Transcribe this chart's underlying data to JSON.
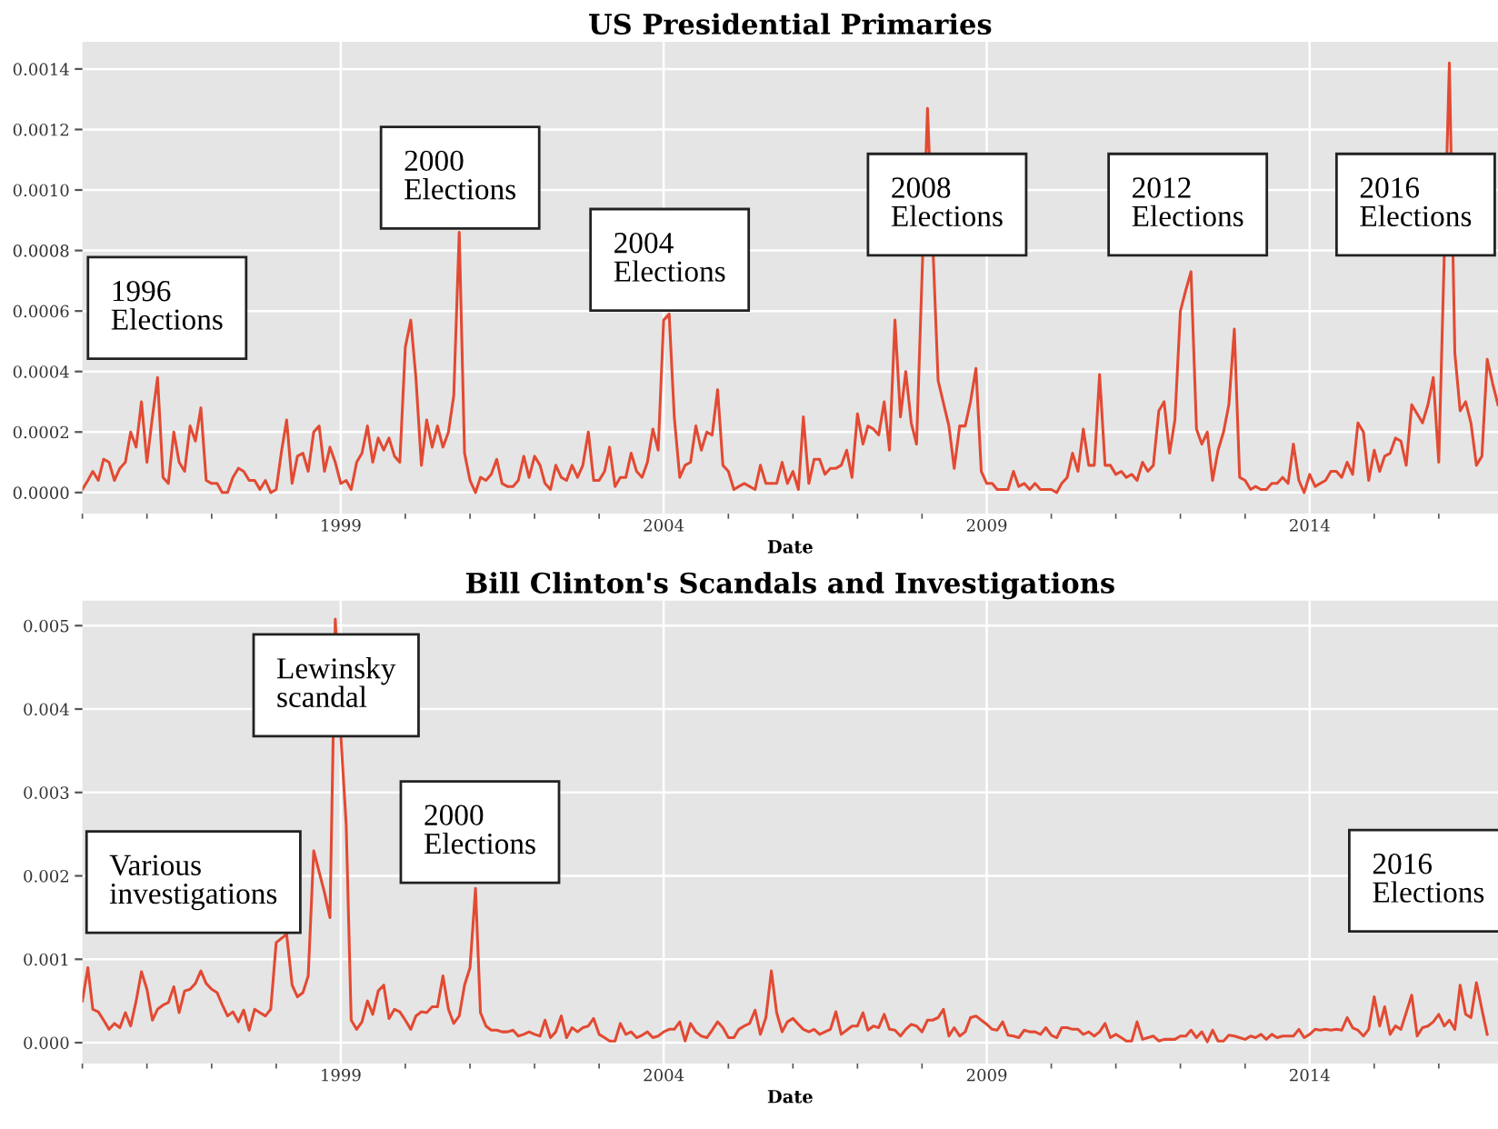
{
  "chart_data": [
    {
      "type": "line",
      "title": "US Presidential Primaries",
      "xlabel": "Date",
      "x": [
        "1995-01",
        "1995-02",
        "1995-03",
        "1995-04",
        "1995-05",
        "1995-06",
        "1995-07",
        "1995-08",
        "1995-09",
        "1995-10",
        "1995-11",
        "1995-12",
        "1996-01",
        "1996-02",
        "1996-03",
        "1996-04",
        "1996-05",
        "1996-06",
        "1996-07",
        "1996-08",
        "1996-09",
        "1996-10",
        "1996-11",
        "1996-12",
        "1997-01",
        "1997-02",
        "1997-03",
        "1997-04",
        "1997-05",
        "1997-06",
        "1997-07",
        "1997-08",
        "1997-09",
        "1997-10",
        "1997-11",
        "1997-12",
        "1998-01",
        "1998-02",
        "1998-03",
        "1998-04",
        "1998-05",
        "1998-06",
        "1998-07",
        "1998-08",
        "1998-09",
        "1998-10",
        "1998-11",
        "1998-12",
        "1999-01",
        "1999-02",
        "1999-03",
        "1999-04",
        "1999-05",
        "1999-06",
        "1999-07",
        "1999-08",
        "1999-09",
        "1999-10",
        "1999-11",
        "1999-12",
        "2000-01",
        "2000-02",
        "2000-03",
        "2000-04",
        "2000-05",
        "2000-06",
        "2000-07",
        "2000-08",
        "2000-09",
        "2000-10",
        "2000-11",
        "2000-12",
        "2001-01",
        "2001-02",
        "2001-03",
        "2001-04",
        "2001-05",
        "2001-06",
        "2001-07",
        "2001-08",
        "2001-09",
        "2001-10",
        "2001-11",
        "2001-12",
        "2002-01",
        "2002-02",
        "2002-03",
        "2002-04",
        "2002-05",
        "2002-06",
        "2002-07",
        "2002-08",
        "2002-09",
        "2002-10",
        "2002-11",
        "2002-12",
        "2003-01",
        "2003-02",
        "2003-03",
        "2003-04",
        "2003-05",
        "2003-06",
        "2003-07",
        "2003-08",
        "2003-09",
        "2003-10",
        "2003-11",
        "2003-12",
        "2004-01",
        "2004-02",
        "2004-03",
        "2004-04",
        "2004-05",
        "2004-06",
        "2004-07",
        "2004-08",
        "2004-09",
        "2004-10",
        "2004-11",
        "2004-12",
        "2005-01",
        "2005-02",
        "2005-03",
        "2005-04",
        "2005-05",
        "2005-06",
        "2005-07",
        "2005-08",
        "2005-09",
        "2005-10",
        "2005-11",
        "2005-12",
        "2006-01",
        "2006-02",
        "2006-03",
        "2006-04",
        "2006-05",
        "2006-06",
        "2006-07",
        "2006-08",
        "2006-09",
        "2006-10",
        "2006-11",
        "2006-12",
        "2007-01",
        "2007-02",
        "2007-03",
        "2007-04",
        "2007-05",
        "2007-06",
        "2007-07",
        "2007-08",
        "2007-09",
        "2007-10",
        "2007-11",
        "2007-12",
        "2008-01",
        "2008-02",
        "2008-03",
        "2008-04",
        "2008-05",
        "2008-06",
        "2008-07",
        "2008-08",
        "2008-09",
        "2008-10",
        "2008-11",
        "2008-12",
        "2009-01",
        "2009-02",
        "2009-03",
        "2009-04",
        "2009-05",
        "2009-06",
        "2009-07",
        "2009-08",
        "2009-09",
        "2009-10",
        "2009-11",
        "2009-12",
        "2010-01",
        "2010-02",
        "2010-03",
        "2010-04",
        "2010-05",
        "2010-06",
        "2010-07",
        "2010-08",
        "2010-09",
        "2010-10",
        "2010-11",
        "2010-12",
        "2011-01",
        "2011-02",
        "2011-03",
        "2011-04",
        "2011-05",
        "2011-06",
        "2011-07",
        "2011-08",
        "2011-09",
        "2011-10",
        "2011-11",
        "2011-12",
        "2012-01",
        "2012-02",
        "2012-03",
        "2012-04",
        "2012-05",
        "2012-06",
        "2012-07",
        "2012-08",
        "2012-09",
        "2012-10",
        "2012-11",
        "2012-12",
        "2013-01",
        "2013-02",
        "2013-03",
        "2013-04",
        "2013-05",
        "2013-06",
        "2013-07",
        "2013-08",
        "2013-09",
        "2013-10",
        "2013-11",
        "2013-12",
        "2014-01",
        "2014-02",
        "2014-03",
        "2014-04",
        "2014-05",
        "2014-06",
        "2014-07",
        "2014-08",
        "2014-09",
        "2014-10",
        "2014-11",
        "2014-12",
        "2015-01",
        "2015-02",
        "2015-03",
        "2015-04",
        "2015-05",
        "2015-06",
        "2015-07",
        "2015-08",
        "2015-09",
        "2015-10",
        "2015-11",
        "2015-12",
        "2016-01",
        "2016-02",
        "2016-03",
        "2016-04",
        "2016-05",
        "2016-06",
        "2016-07",
        "2016-08",
        "2016-09",
        "2016-10",
        "2016-11",
        "2016-12"
      ],
      "series": [
        {
          "color": "#e24a33",
          "values": [
            1e-05,
            4e-05,
            7e-05,
            4e-05,
            0.00011,
            0.0001,
            4e-05,
            8e-05,
            0.0001,
            0.0002,
            0.00015,
            0.0003,
            0.0001,
            0.00025,
            0.00038,
            5e-05,
            3e-05,
            0.0002,
            0.0001,
            7e-05,
            0.00022,
            0.00017,
            0.00028,
            4e-05,
            3e-05,
            3e-05,
            0,
            0,
            5e-05,
            8e-05,
            7e-05,
            4e-05,
            4e-05,
            1e-05,
            4e-05,
            0,
            1e-05,
            0.00014,
            0.00024,
            3e-05,
            0.00012,
            0.00013,
            7e-05,
            0.0002,
            0.00022,
            7e-05,
            0.00015,
            0.0001,
            3e-05,
            4e-05,
            1e-05,
            0.0001,
            0.00013,
            0.00022,
            0.0001,
            0.00018,
            0.00014,
            0.00018,
            0.00012,
            0.0001,
            0.00048,
            0.00057,
            0.00038,
            9e-05,
            0.00024,
            0.00015,
            0.00022,
            0.00015,
            0.0002,
            0.00032,
            0.00086,
            0.00013,
            4e-05,
            0,
            5e-05,
            4e-05,
            6e-05,
            0.00011,
            3e-05,
            2e-05,
            2e-05,
            4e-05,
            0.00012,
            5e-05,
            0.00012,
            9e-05,
            3e-05,
            1e-05,
            9e-05,
            5e-05,
            4e-05,
            9e-05,
            5e-05,
            9e-05,
            0.0002,
            4e-05,
            4e-05,
            7e-05,
            0.00015,
            2e-05,
            5e-05,
            5e-05,
            0.00013,
            7e-05,
            5e-05,
            0.0001,
            0.00021,
            0.00014,
            0.00057,
            0.00059,
            0.00025,
            5e-05,
            9e-05,
            0.0001,
            0.00022,
            0.00014,
            0.0002,
            0.00019,
            0.00034,
            9e-05,
            7e-05,
            1e-05,
            2e-05,
            3e-05,
            2e-05,
            1e-05,
            9e-05,
            3e-05,
            3e-05,
            3e-05,
            0.0001,
            3e-05,
            7e-05,
            1e-05,
            0.00025,
            3e-05,
            0.00011,
            0.00011,
            6e-05,
            8e-05,
            8e-05,
            9e-05,
            0.00014,
            5e-05,
            0.00026,
            0.00016,
            0.00022,
            0.00021,
            0.00019,
            0.0003,
            0.00014,
            0.00057,
            0.00025,
            0.0004,
            0.00023,
            0.00016,
            null,
            0.00127,
            null,
            0.00037,
            null,
            0.00022,
            8e-05,
            0.00022,
            0.00022,
            0.0003,
            0.00041,
            7e-05,
            3e-05,
            3e-05,
            1e-05,
            1e-05,
            1e-05,
            7e-05,
            2e-05,
            3e-05,
            1e-05,
            3e-05,
            1e-05,
            1e-05,
            1e-05,
            0,
            3e-05,
            5e-05,
            0.00013,
            7e-05,
            0.00021,
            9e-05,
            9e-05,
            0.00039,
            9e-05,
            9e-05,
            6e-05,
            7e-05,
            5e-05,
            6e-05,
            4e-05,
            0.0001,
            7e-05,
            9e-05,
            0.00027,
            0.0003,
            0.00013,
            0.00024,
            0.0006,
            0.00067,
            0.00073,
            0.00021,
            0.00016,
            0.0002,
            4e-05,
            0.00014,
            0.0002,
            0.00029,
            0.00054,
            5e-05,
            4e-05,
            1e-05,
            2e-05,
            1e-05,
            1e-05,
            3e-05,
            3e-05,
            5e-05,
            3e-05,
            0.00016,
            4e-05,
            0,
            6e-05,
            2e-05,
            3e-05,
            4e-05,
            7e-05,
            7e-05,
            5e-05,
            0.0001,
            6e-05,
            0.00023,
            0.0002,
            4e-05,
            0.00014,
            7e-05,
            0.00012,
            0.00013,
            0.00018,
            0.00017,
            9e-05,
            0.00029,
            0.00026,
            0.00023,
            0.00029,
            0.00038,
            0.0001,
            null,
            0.00142,
            0.00046,
            0.00027,
            0.0003,
            0.00023,
            9e-05,
            0.00012,
            0.00044,
            0.00036,
            0.00029
          ]
        }
      ],
      "xlim": [
        "1995-01",
        "2016-12"
      ],
      "xticks": [
        {
          "value": "1995",
          "label": null
        },
        {
          "value": "1996",
          "label": null
        },
        {
          "value": "1997",
          "label": null
        },
        {
          "value": "1998",
          "label": null
        },
        {
          "value": "1999",
          "label": "1999"
        },
        {
          "value": "2000",
          "label": null
        },
        {
          "value": "2001",
          "label": null
        },
        {
          "value": "2002",
          "label": null
        },
        {
          "value": "2003",
          "label": null
        },
        {
          "value": "2004",
          "label": "2004"
        },
        {
          "value": "2005",
          "label": null
        },
        {
          "value": "2006",
          "label": null
        },
        {
          "value": "2007",
          "label": null
        },
        {
          "value": "2008",
          "label": null
        },
        {
          "value": "2009",
          "label": "2009"
        },
        {
          "value": "2010",
          "label": null
        },
        {
          "value": "2011",
          "label": null
        },
        {
          "value": "2012",
          "label": null
        },
        {
          "value": "2013",
          "label": null
        },
        {
          "value": "2014",
          "label": "2014"
        },
        {
          "value": "2015",
          "label": null
        },
        {
          "value": "2016",
          "label": null
        }
      ],
      "ylim": [
        -7e-05,
        0.00149
      ],
      "yticks": [
        {
          "value": 0,
          "label": "0.0000"
        },
        {
          "value": 0.0002,
          "label": "0.0002"
        },
        {
          "value": 0.0004,
          "label": "0.0004"
        },
        {
          "value": 0.0006,
          "label": "0.0006"
        },
        {
          "value": 0.0008,
          "label": "0.0008"
        },
        {
          "value": 0.001,
          "label": "0.0010"
        },
        {
          "value": 0.0012,
          "label": "0.0012"
        },
        {
          "value": 0.0014,
          "label": "0.0014"
        }
      ],
      "grid": true,
      "line_style": "solid",
      "marker": "none",
      "annotations": [
        "1996\nElections",
        "2000\nElections",
        "2004\nElections",
        "2008\nElections",
        "2012\nElections",
        "2016\nElections"
      ]
    },
    {
      "type": "line",
      "title": "Bill Clinton's Scandals and Investigations",
      "xlabel": "Date",
      "x": [
        "1995-01",
        "1995-02",
        "1995-03",
        "1995-04",
        "1995-05",
        "1995-06",
        "1995-07",
        "1995-08",
        "1995-09",
        "1995-10",
        "1995-11",
        "1995-12",
        "1996-01",
        "1996-02",
        "1996-03",
        "1996-04",
        "1996-05",
        "1996-06",
        "1996-07",
        "1996-08",
        "1996-09",
        "1996-10",
        "1996-11",
        "1996-12",
        "1997-01",
        "1997-02",
        "1997-03",
        "1997-04",
        "1997-05",
        "1997-06",
        "1997-07",
        "1997-08",
        "1997-09",
        "1997-10",
        "1997-11",
        "1997-12",
        "1998-01",
        "1998-02",
        "1998-03",
        "1998-04",
        "1998-05",
        "1998-06",
        "1998-07",
        "1998-08",
        "1998-09",
        "1998-10",
        "1998-11",
        "1998-12",
        "1999-01",
        "1999-02",
        "1999-03",
        "1999-04",
        "1999-05",
        "1999-06",
        "1999-07",
        "1999-08",
        "1999-09",
        "1999-10",
        "1999-11",
        "1999-12",
        "2000-01",
        "2000-02",
        "2000-03",
        "2000-04",
        "2000-05",
        "2000-06",
        "2000-07",
        "2000-08",
        "2000-09",
        "2000-10",
        "2000-11",
        "2000-12",
        "2001-01",
        "2001-02",
        "2001-03",
        "2001-04",
        "2001-05",
        "2001-06",
        "2001-07",
        "2001-08",
        "2001-09",
        "2001-10",
        "2001-11",
        "2001-12",
        "2002-01",
        "2002-02",
        "2002-03",
        "2002-04",
        "2002-05",
        "2002-06",
        "2002-07",
        "2002-08",
        "2002-09",
        "2002-10",
        "2002-11",
        "2002-12",
        "2003-01",
        "2003-02",
        "2003-03",
        "2003-04",
        "2003-05",
        "2003-06",
        "2003-07",
        "2003-08",
        "2003-09",
        "2003-10",
        "2003-11",
        "2003-12",
        "2004-01",
        "2004-02",
        "2004-03",
        "2004-04",
        "2004-05",
        "2004-06",
        "2004-07",
        "2004-08",
        "2004-09",
        "2004-10",
        "2004-11",
        "2004-12",
        "2005-01",
        "2005-02",
        "2005-03",
        "2005-04",
        "2005-05",
        "2005-06",
        "2005-07",
        "2005-08",
        "2005-09",
        "2005-10",
        "2005-11",
        "2005-12",
        "2006-01",
        "2006-02",
        "2006-03",
        "2006-04",
        "2006-05",
        "2006-06",
        "2006-07",
        "2006-08",
        "2006-09",
        "2006-10",
        "2006-11",
        "2006-12",
        "2007-01",
        "2007-02",
        "2007-03",
        "2007-04",
        "2007-05",
        "2007-06",
        "2007-07",
        "2007-08",
        "2007-09",
        "2007-10",
        "2007-11",
        "2007-12",
        "2008-01",
        "2008-02",
        "2008-03",
        "2008-04",
        "2008-05",
        "2008-06",
        "2008-07",
        "2008-08",
        "2008-09",
        "2008-10",
        "2008-11",
        "2008-12",
        "2009-01",
        "2009-02",
        "2009-03",
        "2009-04",
        "2009-05",
        "2009-06",
        "2009-07",
        "2009-08",
        "2009-09",
        "2009-10",
        "2009-11",
        "2009-12",
        "2010-01",
        "2010-02",
        "2010-03",
        "2010-04",
        "2010-05",
        "2010-06",
        "2010-07",
        "2010-08",
        "2010-09",
        "2010-10",
        "2010-11",
        "2010-12",
        "2011-01",
        "2011-02",
        "2011-03",
        "2011-04",
        "2011-05",
        "2011-06",
        "2011-07",
        "2011-08",
        "2011-09",
        "2011-10",
        "2011-11",
        "2011-12",
        "2012-01",
        "2012-02",
        "2012-03",
        "2012-04",
        "2012-05",
        "2012-06",
        "2012-07",
        "2012-08",
        "2012-09",
        "2012-10",
        "2012-11",
        "2012-12",
        "2013-01",
        "2013-02",
        "2013-03",
        "2013-04",
        "2013-05",
        "2013-06",
        "2013-07",
        "2013-08",
        "2013-09",
        "2013-10",
        "2013-11",
        "2013-12",
        "2014-01",
        "2014-02",
        "2014-03",
        "2014-04",
        "2014-05",
        "2014-06",
        "2014-07",
        "2014-08",
        "2014-09",
        "2014-10",
        "2014-11",
        "2014-12",
        "2015-01",
        "2015-02",
        "2015-03",
        "2015-04",
        "2015-05",
        "2015-06",
        "2015-07",
        "2015-08",
        "2015-09",
        "2015-10",
        "2015-11",
        "2015-12",
        "2016-01",
        "2016-02",
        "2016-03",
        "2016-04",
        "2016-05",
        "2016-06",
        "2016-07",
        "2016-08",
        "2016-09",
        "2016-10"
      ],
      "series": [
        {
          "color": "#e24a33",
          "values": [
            0.0005,
            0.0009,
            0.0004,
            0.00037,
            0.00027,
            0.00016,
            0.00023,
            0.00018,
            0.00036,
            0.0002,
            0.0005,
            0.00085,
            0.00064,
            0.00027,
            0.0004,
            0.00045,
            0.00048,
            0.00067,
            0.00036,
            0.00062,
            0.00064,
            0.00071,
            0.00086,
            0.00071,
            0.00064,
            0.0006,
            0.00046,
            0.00032,
            0.00037,
            0.00025,
            0.00039,
            0.00015,
            0.0004,
            0.00036,
            0.00032,
            0.0004,
            0.0012,
            null,
            0.0013,
            0.00069,
            0.00055,
            0.0006,
            0.0008,
            0.0023,
            null,
            0.0018,
            0.0015,
            0.00508,
            0.0037,
            0.0026,
            0.00027,
            0.00016,
            0.00025,
            0.0005,
            0.00034,
            0.00062,
            0.00069,
            0.00029,
            0.0004,
            0.00037,
            0.00027,
            0.00016,
            0.00032,
            0.00037,
            0.00036,
            0.00043,
            0.00043,
            0.0008,
            0.0004,
            0.00023,
            0.00032,
            0.00069,
            0.0009,
            0.00185,
            0.00036,
            0.0002,
            0.00015,
            0.00015,
            0.00013,
            0.00013,
            0.00015,
            8e-05,
            0.0001,
            0.00013,
            0.0001,
            8e-05,
            0.00027,
            6e-05,
            0.00013,
            0.00032,
            6e-05,
            0.00018,
            0.00013,
            0.00018,
            0.0002,
            0.00029,
            0.0001,
            6e-05,
            2e-05,
            2e-05,
            0.00023,
            0.0001,
            0.00013,
            6e-05,
            9e-05,
            0.00013,
            6e-05,
            8e-05,
            0.00013,
            0.00016,
            0.00016,
            0.00025,
            2e-05,
            0.00023,
            0.00013,
            8e-05,
            6e-05,
            0.00015,
            0.00025,
            0.00018,
            6e-05,
            6e-05,
            0.00016,
            0.0002,
            0.00023,
            0.00039,
            0.0001,
            0.0003,
            0.00086,
            0.00036,
            0.00013,
            0.00025,
            0.00029,
            0.00022,
            0.00016,
            0.00013,
            0.00016,
            0.0001,
            0.00013,
            0.00016,
            0.00037,
            0.0001,
            0.00015,
            0.0002,
            0.0002,
            0.00036,
            0.00015,
            0.0002,
            0.00018,
            0.00034,
            0.00016,
            0.00015,
            8e-05,
            0.00016,
            0.00022,
            0.0002,
            0.00013,
            0.00027,
            0.00027,
            0.0003,
            0.0004,
            8e-05,
            0.00018,
            8e-05,
            0.00013,
            0.0003,
            0.00032,
            0.00027,
            0.00022,
            0.00016,
            0.00015,
            0.00025,
            9e-05,
            8e-05,
            6e-05,
            0.00015,
            0.00013,
            0.00013,
            0.0001,
            0.00018,
            9e-05,
            6e-05,
            0.00018,
            0.00018,
            0.00016,
            0.00016,
            0.0001,
            0.00013,
            8e-05,
            0.00013,
            0.00023,
            6e-05,
            0.0001,
            6e-05,
            2e-05,
            2e-05,
            0.00025,
            4e-05,
            6e-05,
            8e-05,
            2e-05,
            4e-05,
            4e-05,
            4e-05,
            8e-05,
            8e-05,
            0.00015,
            6e-05,
            0.00013,
            1e-05,
            0.00015,
            2e-05,
            2e-05,
            9e-05,
            8e-05,
            6e-05,
            4e-05,
            8e-05,
            6e-05,
            0.0001,
            4e-05,
            0.0001,
            6e-05,
            8e-05,
            8e-05,
            8e-05,
            0.00016,
            6e-05,
            0.0001,
            0.00016,
            0.00015,
            0.00016,
            0.00015,
            0.00016,
            0.00015,
            0.0003,
            0.00018,
            0.00015,
            8e-05,
            0.00016,
            0.00055,
            0.0002,
            0.00043,
            0.0001,
            0.0002,
            0.00016,
            0.00036,
            0.00057,
            8e-05,
            0.00018,
            0.0002,
            0.00025,
            0.00034,
            0.0002,
            0.00027,
            0.00016,
            0.00069,
            0.00034,
            0.0003,
            0.00072,
            0.0004,
            0.0001
          ]
        }
      ],
      "xlim": [
        "1995-01",
        "2016-12"
      ],
      "xticks": [
        {
          "value": "1995",
          "label": null
        },
        {
          "value": "1996",
          "label": null
        },
        {
          "value": "1997",
          "label": null
        },
        {
          "value": "1998",
          "label": null
        },
        {
          "value": "1999",
          "label": "1999"
        },
        {
          "value": "2000",
          "label": null
        },
        {
          "value": "2001",
          "label": null
        },
        {
          "value": "2002",
          "label": null
        },
        {
          "value": "2003",
          "label": null
        },
        {
          "value": "2004",
          "label": "2004"
        },
        {
          "value": "2005",
          "label": null
        },
        {
          "value": "2006",
          "label": null
        },
        {
          "value": "2007",
          "label": null
        },
        {
          "value": "2008",
          "label": null
        },
        {
          "value": "2009",
          "label": "2009"
        },
        {
          "value": "2010",
          "label": null
        },
        {
          "value": "2011",
          "label": null
        },
        {
          "value": "2012",
          "label": null
        },
        {
          "value": "2013",
          "label": null
        },
        {
          "value": "2014",
          "label": "2014"
        },
        {
          "value": "2015",
          "label": null
        },
        {
          "value": "2016",
          "label": null
        }
      ],
      "ylim": [
        -0.00025,
        0.0053
      ],
      "yticks": [
        {
          "value": 0,
          "label": "0.000"
        },
        {
          "value": 0.001,
          "label": "0.001"
        },
        {
          "value": 0.002,
          "label": "0.002"
        },
        {
          "value": 0.003,
          "label": "0.003"
        },
        {
          "value": 0.004,
          "label": "0.004"
        },
        {
          "value": 0.005,
          "label": "0.005"
        }
      ],
      "grid": true,
      "line_style": "solid",
      "marker": "none",
      "annotations": [
        "Various\ninvestigations",
        "Lewinsky\nscandal",
        "2000\nElections",
        "2016\nElections"
      ]
    }
  ]
}
